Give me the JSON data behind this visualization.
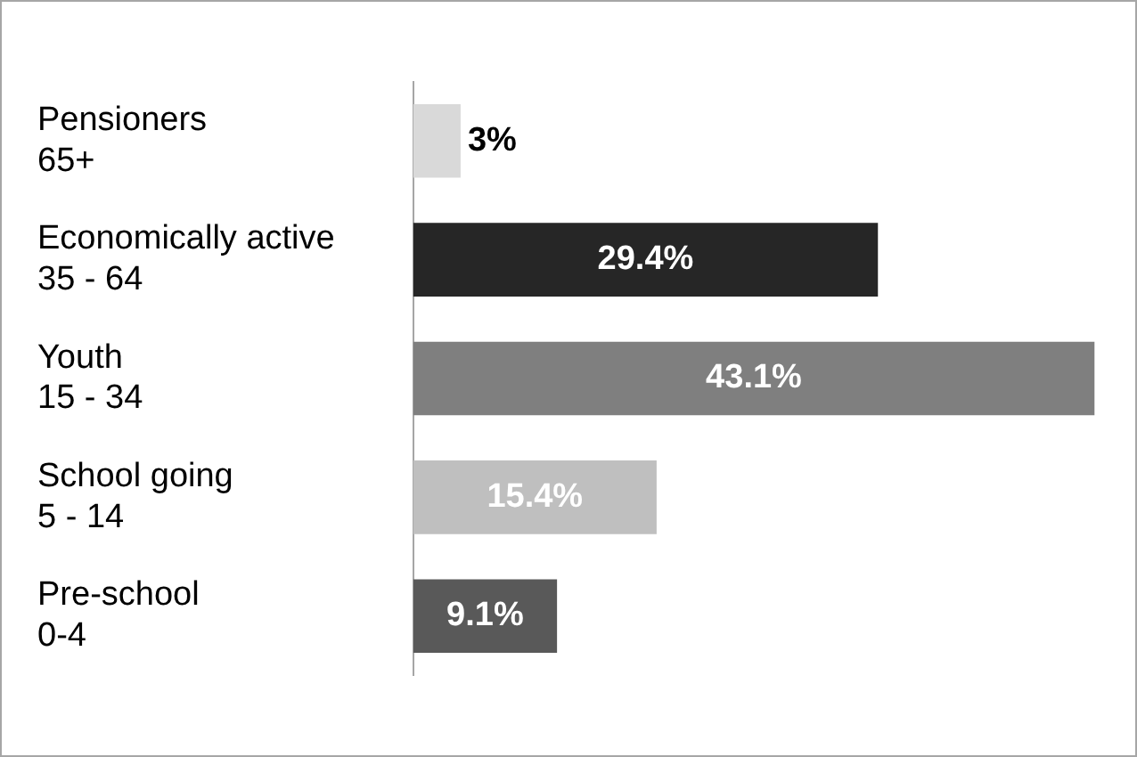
{
  "chart_data": {
    "type": "bar",
    "orientation": "horizontal",
    "categories": [
      "Pensioners\n65+",
      "Economically active\n35 - 64",
      "Youth\n15 - 34",
      "School going\n5 - 14",
      "Pre-school\n0-4"
    ],
    "values": [
      3,
      29.4,
      43.1,
      15.4,
      9.1
    ],
    "colors": [
      "#d9d9d9",
      "#262626",
      "#7f7f7f",
      "#bfbfbf",
      "#595959"
    ],
    "value_labels": [
      "3%",
      "29.4%",
      "43.1%",
      "15.4%",
      "9.1%"
    ],
    "grid": false,
    "legend": false,
    "tick_labels": "y"
  }
}
